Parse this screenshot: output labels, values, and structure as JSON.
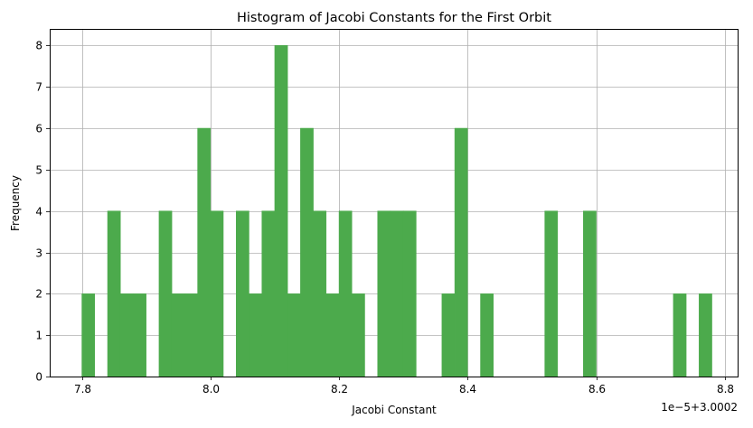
{
  "chart_data": {
    "type": "bar",
    "title": "Histogram of Jacobi Constants for the First Orbit",
    "xlabel": "Jacobi Constant",
    "ylabel": "Frequency",
    "x_offset_label": "1e−5+3.0002",
    "xlim": [
      7.75,
      8.82
    ],
    "ylim": [
      0,
      8.4
    ],
    "xticks": [
      "7.8",
      "8.0",
      "8.2",
      "8.4",
      "8.6",
      "8.8"
    ],
    "yticks": [
      "0",
      "1",
      "2",
      "3",
      "4",
      "5",
      "6",
      "7",
      "8"
    ],
    "grid": true,
    "bar_color": "#4caa4c",
    "bin_start": 7.8,
    "bin_width": 0.02,
    "values": [
      2,
      0,
      4,
      2,
      2,
      0,
      4,
      2,
      2,
      6,
      4,
      0,
      4,
      2,
      4,
      8,
      2,
      6,
      4,
      2,
      4,
      2,
      0,
      4,
      4,
      4,
      0,
      0,
      2,
      6,
      0,
      2,
      0,
      0,
      0,
      0,
      4,
      0,
      0,
      4,
      0,
      0,
      0,
      0,
      0,
      0,
      2,
      0,
      2,
      0
    ]
  }
}
